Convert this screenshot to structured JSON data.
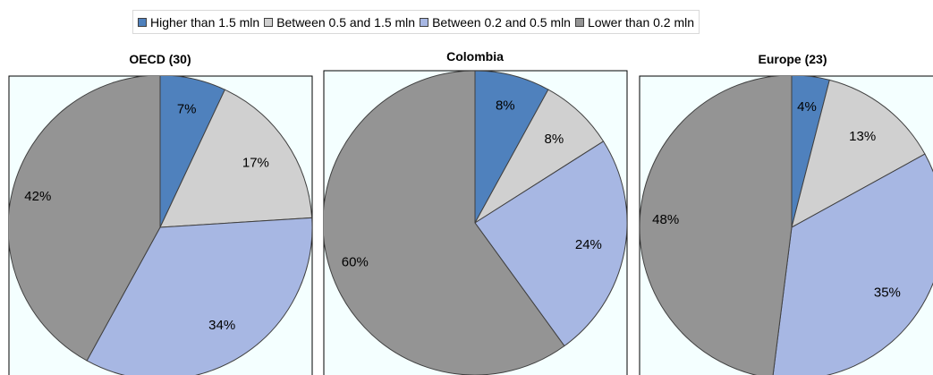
{
  "colors": {
    "plot_background": "#f4ffff",
    "slice_outline": "#404040",
    "frame": "#000000"
  },
  "legend": [
    {
      "label": "Higher than 1.5 mln",
      "color": "#4f81bd"
    },
    {
      "label": "Between 0.5 and 1.5 mln",
      "color": "#d0d0d0"
    },
    {
      "label": "Between 0.2 and 0.5 mln",
      "color": "#a7b7e3"
    },
    {
      "label": "Lower than 0.2 mln",
      "color": "#949494"
    }
  ],
  "chart_data": [
    {
      "type": "pie",
      "title": "OECD (30)",
      "categories": [
        "Higher than 1.5 mln",
        "Between 0.5 and 1.5 mln",
        "Between 0.2 and 0.5 mln",
        "Lower than 0.2 mln"
      ],
      "values": [
        7,
        17,
        34,
        42
      ],
      "labels": [
        "7%",
        "17%",
        "34%",
        "42%"
      ],
      "start": "12 o'clock",
      "direction": "clockwise"
    },
    {
      "type": "pie",
      "title": "Colombia",
      "categories": [
        "Higher than 1.5 mln",
        "Between 0.5 and 1.5 mln",
        "Between 0.2 and 0.5 mln",
        "Lower than 0.2 mln"
      ],
      "values": [
        8,
        8,
        24,
        60
      ],
      "labels": [
        "8%",
        "8%",
        "24%",
        "60%"
      ],
      "start": "12 o'clock",
      "direction": "clockwise"
    },
    {
      "type": "pie",
      "title": "Europe (23)",
      "categories": [
        "Higher than 1.5 mln",
        "Between 0.5 and 1.5 mln",
        "Between 0.2 and 0.5 mln",
        "Lower than 0.2 mln"
      ],
      "values": [
        4,
        13,
        35,
        48
      ],
      "labels": [
        "4%",
        "13%",
        "35%",
        "48%"
      ],
      "start": "12 o'clock",
      "direction": "clockwise"
    }
  ]
}
